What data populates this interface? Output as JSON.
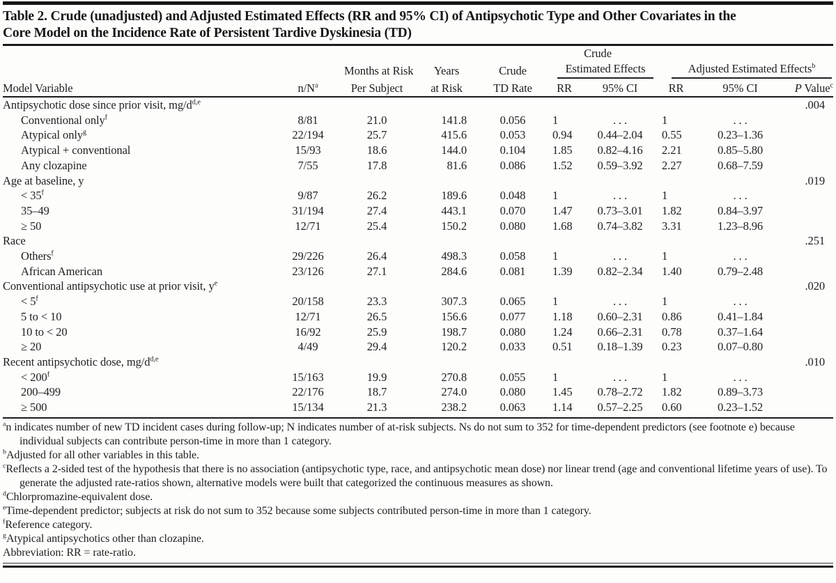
{
  "colors": {
    "ink": "#1f1f1f",
    "background": "#fdfdfc"
  },
  "title": {
    "line1": "Table 2. Crude (unadjusted) and Adjusted Estimated Effects (RR and 95% CI) of Antipsychotic Type and Other Covariates in the",
    "line2": "Core Model on the Incidence Rate of Persistent Tardive Dyskinesia (TD)"
  },
  "header": {
    "crude_group_line1": "Crude",
    "crude_group_line2": "Estimated Effects",
    "adjusted_group": "Adjusted Estimated Effects",
    "adjusted_group_sup": "b",
    "model_variable": "Model Variable",
    "n_N": "n/N",
    "n_N_sup": "a",
    "months_line1": "Months at Risk",
    "months_line2": "Per Subject",
    "years_line1": "Years",
    "years_line2": "at Risk",
    "crude_rate_line1": "Crude",
    "crude_rate_line2": "TD Rate",
    "crude_rr": "RR",
    "crude_ci": "95% CI",
    "adj_rr": "RR",
    "adj_ci": "95% CI",
    "p_italic": "P",
    "p_rest": " Value",
    "p_sup": "c"
  },
  "rows": [
    {
      "type": "group",
      "label": "Antipsychotic dose since prior visit, mg/d",
      "sup": "d,e",
      "p": ".004"
    },
    {
      "type": "data",
      "label": "Conventional only",
      "sup": "f",
      "n": "8/81",
      "months": "21.0",
      "years": "141.8",
      "rate": "0.056",
      "crr": "1",
      "cci": ". . .",
      "arr": "1",
      "aci": ". . ."
    },
    {
      "type": "data",
      "label": "Atypical only",
      "sup": "g",
      "n": "22/194",
      "months": "25.7",
      "years": "415.6",
      "rate": "0.053",
      "crr": "0.94",
      "cci": "0.44–2.04",
      "arr": "0.55",
      "aci": "0.23–1.36"
    },
    {
      "type": "data",
      "label": "Atypical + conventional",
      "sup": "",
      "n": "15/93",
      "months": "18.6",
      "years": "144.0",
      "rate": "0.104",
      "crr": "1.85",
      "cci": "0.82–4.16",
      "arr": "2.21",
      "aci": "0.85–5.80"
    },
    {
      "type": "data",
      "label": "Any clozapine",
      "sup": "",
      "n": "7/55",
      "months": "17.8",
      "years": "81.6",
      "rate": "0.086",
      "crr": "1.52",
      "cci": "0.59–3.92",
      "arr": "2.27",
      "aci": "0.68–7.59"
    },
    {
      "type": "group",
      "label": "Age at baseline, y",
      "sup": "",
      "p": ".019"
    },
    {
      "type": "data",
      "label": "< 35",
      "sup": "f",
      "n": "9/87",
      "months": "26.2",
      "years": "189.6",
      "rate": "0.048",
      "crr": "1",
      "cci": ". . .",
      "arr": "1",
      "aci": ". . ."
    },
    {
      "type": "data",
      "label": "35–49",
      "sup": "",
      "n": "31/194",
      "months": "27.4",
      "years": "443.1",
      "rate": "0.070",
      "crr": "1.47",
      "cci": "0.73–3.01",
      "arr": "1.82",
      "aci": "0.84–3.97"
    },
    {
      "type": "data",
      "label": "≥ 50",
      "sup": "",
      "n": "12/71",
      "months": "25.4",
      "years": "150.2",
      "rate": "0.080",
      "crr": "1.68",
      "cci": "0.74–3.82",
      "arr": "3.31",
      "aci": "1.23–8.96"
    },
    {
      "type": "group",
      "label": "Race",
      "sup": "",
      "p": ".251"
    },
    {
      "type": "data",
      "label": "Others",
      "sup": "f",
      "n": "29/226",
      "months": "26.4",
      "years": "498.3",
      "rate": "0.058",
      "crr": "1",
      "cci": ". . .",
      "arr": "1",
      "aci": ". . ."
    },
    {
      "type": "data",
      "label": "African American",
      "sup": "",
      "n": "23/126",
      "months": "27.1",
      "years": "284.6",
      "rate": "0.081",
      "crr": "1.39",
      "cci": "0.82–2.34",
      "arr": "1.40",
      "aci": "0.79–2.48"
    },
    {
      "type": "group",
      "label": "Conventional antipsychotic use at prior visit, y",
      "sup": "e",
      "p": ".020"
    },
    {
      "type": "data",
      "label": "< 5",
      "sup": "f",
      "n": "20/158",
      "months": "23.3",
      "years": "307.3",
      "rate": "0.065",
      "crr": "1",
      "cci": ". . .",
      "arr": "1",
      "aci": ". . ."
    },
    {
      "type": "data",
      "label": "5 to < 10",
      "sup": "",
      "n": "12/71",
      "months": "26.5",
      "years": "156.6",
      "rate": "0.077",
      "crr": "1.18",
      "cci": "0.60–2.31",
      "arr": "0.86",
      "aci": "0.41–1.84"
    },
    {
      "type": "data",
      "label": "10 to < 20",
      "sup": "",
      "n": "16/92",
      "months": "25.9",
      "years": "198.7",
      "rate": "0.080",
      "crr": "1.24",
      "cci": "0.66–2.31",
      "arr": "0.78",
      "aci": "0.37–1.64"
    },
    {
      "type": "data",
      "label": "≥ 20",
      "sup": "",
      "n": "4/49",
      "months": "29.4",
      "years": "120.2",
      "rate": "0.033",
      "crr": "0.51",
      "cci": "0.18–1.39",
      "arr": "0.23",
      "aci": "0.07–0.80"
    },
    {
      "type": "group",
      "label": "Recent antipsychotic dose, mg/d",
      "sup": "d,e",
      "p": ".010"
    },
    {
      "type": "data",
      "label": "< 200",
      "sup": "f",
      "n": "15/163",
      "months": "19.9",
      "years": "270.8",
      "rate": "0.055",
      "crr": "1",
      "cci": ". . .",
      "arr": "1",
      "aci": ". . ."
    },
    {
      "type": "data",
      "label": "200–499",
      "sup": "",
      "n": "22/176",
      "months": "18.7",
      "years": "274.0",
      "rate": "0.080",
      "crr": "1.45",
      "cci": "0.78–2.72",
      "arr": "1.82",
      "aci": "0.89–3.73"
    },
    {
      "type": "data",
      "label": "≥ 500",
      "sup": "",
      "n": "15/134",
      "months": "21.3",
      "years": "238.2",
      "rate": "0.063",
      "crr": "1.14",
      "cci": "0.57–2.25",
      "arr": "0.60",
      "aci": "0.23–1.52"
    }
  ],
  "footnotes": [
    {
      "marker": "a",
      "text": "n indicates number of new TD incident cases during follow-up; N indicates number of at-risk subjects. Ns do not sum to 352 for time-dependent predictors (see footnote e) because individual subjects can contribute person-time in more than 1 category."
    },
    {
      "marker": "b",
      "text": "Adjusted for all other variables in this table."
    },
    {
      "marker": "c",
      "text": "Reflects a 2-sided test of the hypothesis that there is no association (antipsychotic type, race, and antipsychotic mean dose) nor linear trend (age and conventional lifetime years of use). To generate the adjusted rate-ratios shown, alternative models were built that categorized the continuous measures as shown."
    },
    {
      "marker": "d",
      "text": "Chlorpromazine-equivalent dose."
    },
    {
      "marker": "e",
      "text": "Time-dependent predictor; subjects at risk do not sum to 352 because some subjects contributed person-time in more than 1 category."
    },
    {
      "marker": "f",
      "text": "Reference category."
    },
    {
      "marker": "g",
      "text": "Atypical antipsychotics other than clozapine."
    },
    {
      "marker": "",
      "text": "Abbreviation: RR = rate-ratio."
    }
  ]
}
